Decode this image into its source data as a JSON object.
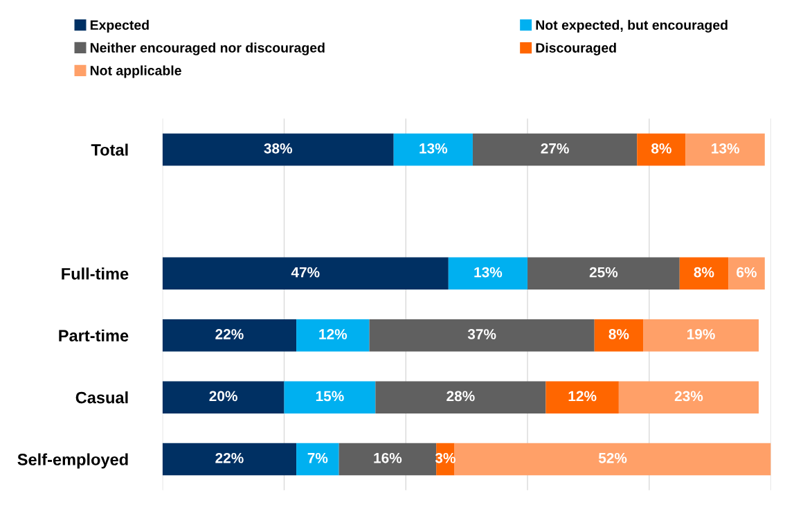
{
  "chart_data": {
    "type": "bar",
    "orientation": "horizontal",
    "stacked": true,
    "categories": [
      "Total",
      null,
      "Full-time",
      "Part-time",
      "Casual",
      "Self-employed"
    ],
    "series": [
      {
        "name": "Expected",
        "color": "#003063",
        "values": [
          38,
          null,
          47,
          22,
          20,
          22
        ],
        "value_labels": [
          "38%",
          null,
          "47%",
          "22%",
          "20%",
          "22%"
        ]
      },
      {
        "name": "Not expected, but encouraged",
        "color": "#00b0f0",
        "values": [
          13,
          null,
          13,
          12,
          15,
          7
        ],
        "value_labels": [
          "13%",
          null,
          "13%",
          "12%",
          "15%",
          "7%"
        ]
      },
      {
        "name": "Neither encouraged nor discouraged",
        "color": "#606060",
        "values": [
          27,
          null,
          25,
          37,
          28,
          16
        ],
        "value_labels": [
          "27%",
          null,
          "25%",
          "37%",
          "28%",
          "16%"
        ]
      },
      {
        "name": "Discouraged",
        "color": "#ff6600",
        "values": [
          8,
          null,
          8,
          8,
          12,
          3
        ],
        "value_labels": [
          "8%",
          null,
          "8%",
          "8%",
          "12%",
          "3%"
        ]
      },
      {
        "name": "Not applicable",
        "color": "#ffa068",
        "values": [
          13,
          null,
          6,
          19,
          23,
          52
        ],
        "value_labels": [
          "13%",
          null,
          "6%",
          "19%",
          "23%",
          "52%"
        ]
      }
    ],
    "xlim": [
      0,
      100
    ],
    "xticks": [
      {
        "value": 0,
        "label": null
      },
      {
        "value": 20,
        "label": null
      },
      {
        "value": 40,
        "label": null
      },
      {
        "value": 60,
        "label": null
      },
      {
        "value": 80,
        "label": null
      },
      {
        "value": 100,
        "label": null
      }
    ],
    "tick_labels": "y",
    "grid": "x",
    "legend": "top"
  }
}
